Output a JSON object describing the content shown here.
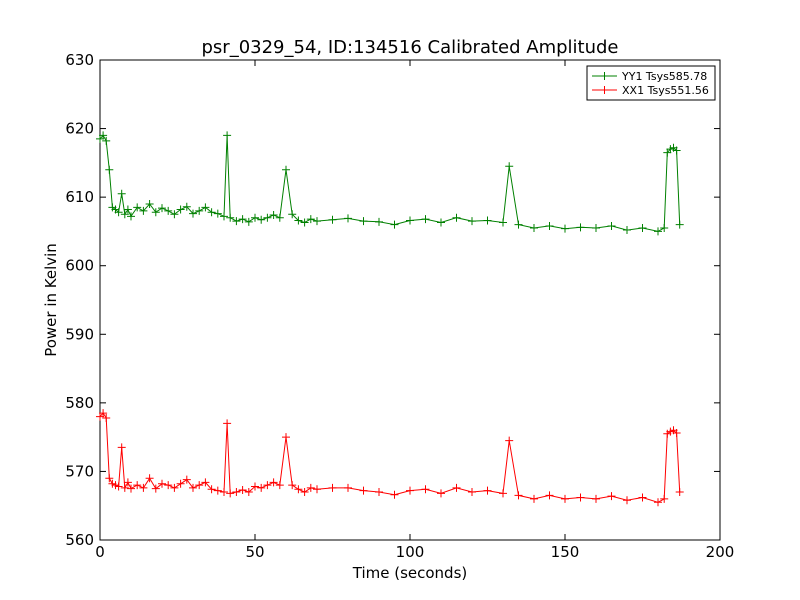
{
  "chart_data": {
    "type": "line",
    "title": "psr_0329_54, ID:134516 Calibrated Amplitude",
    "xlabel": "Time (seconds)",
    "ylabel": "Power in Kelvin",
    "xlim": [
      0,
      200
    ],
    "ylim": [
      560,
      630
    ],
    "xticks": [
      "0",
      "50",
      "100",
      "150",
      "200"
    ],
    "yticks": [
      "560",
      "570",
      "580",
      "590",
      "600",
      "610",
      "620",
      "630"
    ],
    "grid": false,
    "legend_position": "top-right",
    "marker": "+",
    "series": [
      {
        "name": "YY1 Tsys585.78",
        "color": "#008000",
        "x": [
          0,
          1,
          2,
          3,
          4,
          5,
          6,
          7,
          8,
          9,
          10,
          12,
          14,
          16,
          18,
          20,
          22,
          24,
          26,
          28,
          30,
          32,
          34,
          36,
          38,
          40,
          41,
          42,
          44,
          46,
          48,
          50,
          52,
          54,
          56,
          58,
          60,
          62,
          64,
          66,
          68,
          70,
          75,
          80,
          85,
          90,
          95,
          100,
          105,
          110,
          115,
          120,
          125,
          130,
          132,
          135,
          140,
          145,
          150,
          155,
          160,
          165,
          170,
          175,
          180,
          182,
          183,
          184,
          185,
          186,
          187
        ],
        "y": [
          618.5,
          619.0,
          618.2,
          614.0,
          608.5,
          608.2,
          607.8,
          610.5,
          607.5,
          608.2,
          607.2,
          608.5,
          608.0,
          609.0,
          607.8,
          608.4,
          608.0,
          607.5,
          608.2,
          608.6,
          607.6,
          608.0,
          608.5,
          607.8,
          607.6,
          607.2,
          619.0,
          607.0,
          606.5,
          606.8,
          606.4,
          607.0,
          606.7,
          607.0,
          607.4,
          607.0,
          614.0,
          607.5,
          606.6,
          606.3,
          606.8,
          606.5,
          606.7,
          606.9,
          606.5,
          606.4,
          606.0,
          606.6,
          606.8,
          606.3,
          607.0,
          606.5,
          606.6,
          606.3,
          614.5,
          606.0,
          605.5,
          605.8,
          605.4,
          605.6,
          605.5,
          605.8,
          605.2,
          605.5,
          605.0,
          605.5,
          616.5,
          617.0,
          617.2,
          616.8,
          606.0
        ]
      },
      {
        "name": "XX1 Tsys551.56",
        "color": "#ff0000",
        "x": [
          0,
          1,
          2,
          3,
          4,
          5,
          6,
          7,
          8,
          9,
          10,
          12,
          14,
          16,
          18,
          20,
          22,
          24,
          26,
          28,
          30,
          32,
          34,
          36,
          38,
          40,
          41,
          42,
          44,
          46,
          48,
          50,
          52,
          54,
          56,
          58,
          60,
          62,
          64,
          66,
          68,
          70,
          75,
          80,
          85,
          90,
          95,
          100,
          105,
          110,
          115,
          120,
          125,
          130,
          132,
          135,
          140,
          145,
          150,
          155,
          160,
          165,
          170,
          175,
          180,
          182,
          183,
          184,
          185,
          186,
          187
        ],
        "y": [
          578.0,
          578.5,
          577.8,
          569.0,
          568.2,
          568.0,
          567.8,
          573.5,
          567.6,
          568.4,
          567.5,
          568.0,
          567.6,
          569.0,
          567.5,
          568.2,
          568.0,
          567.6,
          568.2,
          568.8,
          567.6,
          568.0,
          568.4,
          567.4,
          567.2,
          567.0,
          577.0,
          566.8,
          567.0,
          567.3,
          567.0,
          567.8,
          567.6,
          568.0,
          568.4,
          568.0,
          575.0,
          568.0,
          567.4,
          567.0,
          567.6,
          567.4,
          567.6,
          567.6,
          567.2,
          567.0,
          566.6,
          567.2,
          567.4,
          566.8,
          567.6,
          567.0,
          567.2,
          566.8,
          574.5,
          566.5,
          566.0,
          566.5,
          566.0,
          566.2,
          566.0,
          566.4,
          565.8,
          566.2,
          565.5,
          566.0,
          575.5,
          575.8,
          576.0,
          575.6,
          567.0
        ]
      }
    ]
  }
}
